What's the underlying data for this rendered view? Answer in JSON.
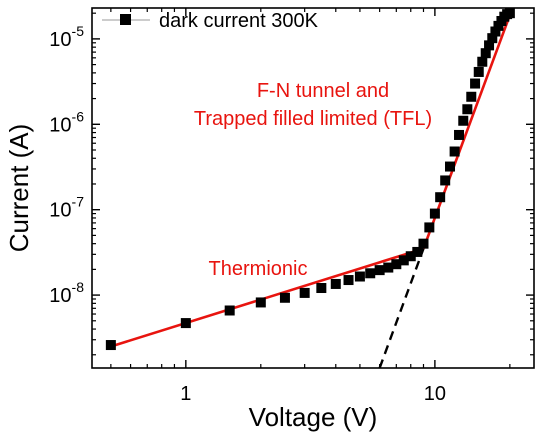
{
  "chart_data": {
    "type": "scatter",
    "xlabel": "Voltage (V)",
    "ylabel": "Current (A)",
    "x_scale": "log",
    "y_scale": "log",
    "xlim": [
      0.42,
      25
    ],
    "ylim": [
      1.4e-09,
      2.3e-05
    ],
    "x_ticks": [
      {
        "value": 1,
        "label": "1"
      },
      {
        "value": 10,
        "label": "10"
      }
    ],
    "y_ticks": [
      {
        "value": 1e-08,
        "base": "10",
        "exp": "-8"
      },
      {
        "value": 1e-07,
        "base": "10",
        "exp": "-7"
      },
      {
        "value": 1e-06,
        "base": "10",
        "exp": "-6"
      },
      {
        "value": 1e-05,
        "base": "10",
        "exp": "-5"
      }
    ],
    "grid": false,
    "legend": {
      "position": "top-left",
      "entries": [
        "dark current 300K"
      ]
    },
    "series": [
      {
        "name": "dark current 300K",
        "marker": "square",
        "color": "#000000",
        "points": [
          [
            0.5,
            2.6e-09
          ],
          [
            1.0,
            4.7e-09
          ],
          [
            1.5,
            6.6e-09
          ],
          [
            2.0,
            8.2e-09
          ],
          [
            2.5,
            9.3e-09
          ],
          [
            3.0,
            1.06e-08
          ],
          [
            3.5,
            1.21e-08
          ],
          [
            4.0,
            1.35e-08
          ],
          [
            4.5,
            1.5e-08
          ],
          [
            5.0,
            1.65e-08
          ],
          [
            5.5,
            1.8e-08
          ],
          [
            6.0,
            1.96e-08
          ],
          [
            6.5,
            2.1e-08
          ],
          [
            7.0,
            2.3e-08
          ],
          [
            7.5,
            2.55e-08
          ],
          [
            8.0,
            2.85e-08
          ],
          [
            8.5,
            3.2e-08
          ],
          [
            9.0,
            4e-08
          ],
          [
            9.5,
            6.2e-08
          ],
          [
            10.0,
            9e-08
          ],
          [
            10.5,
            1.4e-07
          ],
          [
            11.0,
            2.2e-07
          ],
          [
            11.5,
            3.2e-07
          ],
          [
            12.0,
            4.8e-07
          ],
          [
            12.5,
            7.5e-07
          ],
          [
            13.0,
            1.1e-06
          ],
          [
            13.5,
            1.5e-06
          ],
          [
            14.0,
            2.1e-06
          ],
          [
            14.5,
            3e-06
          ],
          [
            15.0,
            4.1e-06
          ],
          [
            15.5,
            5.4e-06
          ],
          [
            16.0,
            6.8e-06
          ],
          [
            16.5,
            8.4e-06
          ],
          [
            17.0,
            1.02e-05
          ],
          [
            17.5,
            1.22e-05
          ],
          [
            18.0,
            1.42e-05
          ],
          [
            18.5,
            1.62e-05
          ],
          [
            19.0,
            1.82e-05
          ],
          [
            19.5,
            1.95e-05
          ],
          [
            20.0,
            2e-05
          ]
        ]
      }
    ],
    "fits": [
      {
        "label": "Thermionic",
        "color": "#e8140f",
        "style": "solid",
        "points": [
          [
            0.5,
            2.5e-09
          ],
          [
            9.0,
            3.5e-08
          ]
        ]
      },
      {
        "label": "F-N tunnel and Trapped filled limited (TFL)",
        "color": "#e8140f",
        "style": "solid",
        "points": [
          [
            9.0,
            3.5e-08
          ],
          [
            20.0,
            1.9e-05
          ]
        ]
      },
      {
        "label": "",
        "color": "#000000",
        "style": "dashed",
        "points": [
          [
            6.0,
            1.4e-09
          ],
          [
            9.0,
            3.5e-08
          ]
        ]
      }
    ],
    "annotations": {
      "tfl_line1": "F-N tunnel and",
      "tfl_line2": "Trapped filled limited (TFL)",
      "thermionic": "Thermionic"
    },
    "annotation_color": "#e8140f"
  }
}
